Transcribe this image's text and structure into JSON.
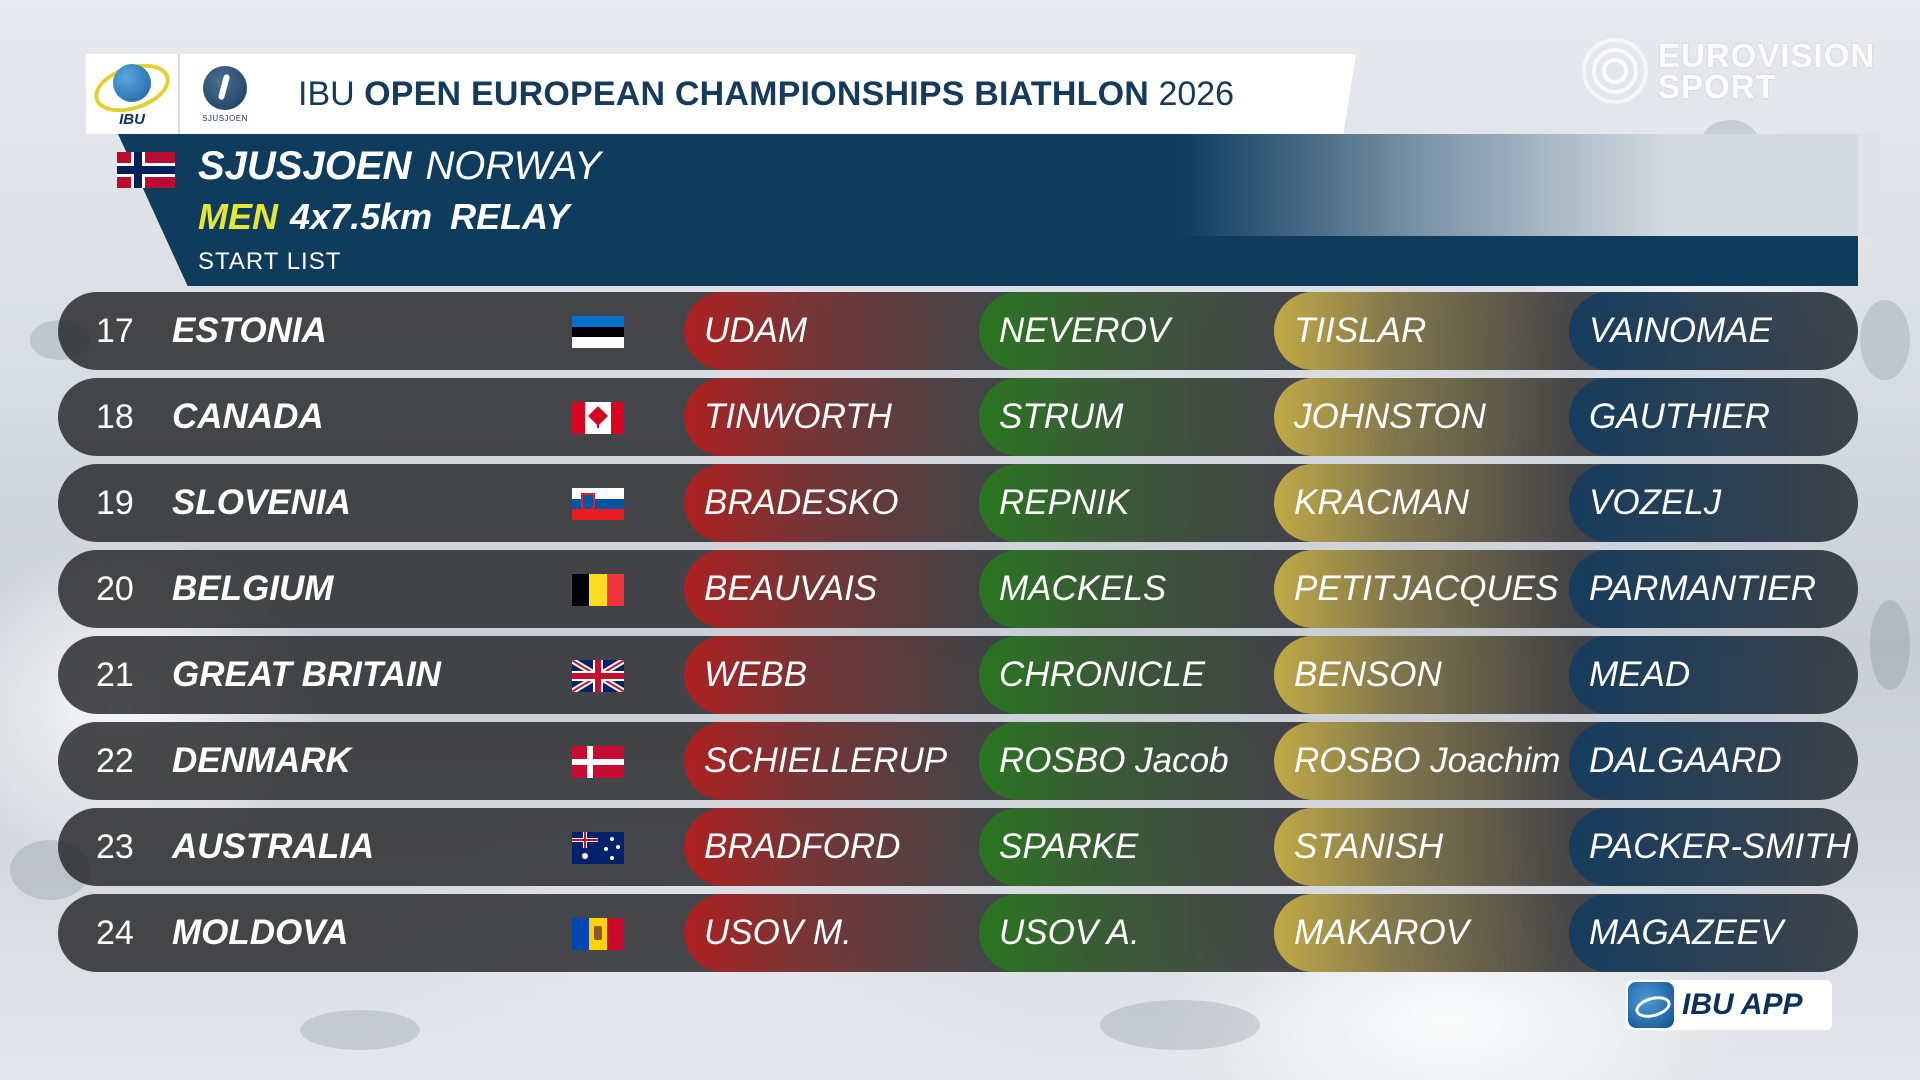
{
  "header": {
    "logo_text": "IBU",
    "venue_logo_text": "SJUSJOEN",
    "title_prefix": "IBU",
    "title_main": "OPEN EUROPEAN CHAMPIONSHIPS BIATHLON",
    "title_year": "2026"
  },
  "broadcaster": {
    "line1": "EUROVISION",
    "line2": "SPORT"
  },
  "event": {
    "city": "SJUSJOEN",
    "country": "NORWAY",
    "gender": "MEN",
    "distance": "4x7.5km",
    "format": "RELAY",
    "list_type": "START  LIST"
  },
  "leg_colors": [
    "#b41e1e",
    "#287a1e",
    "#c8af46",
    "#143c5f"
  ],
  "rows": [
    {
      "num": "17",
      "team": "ESTONIA",
      "flag": "estonia-flag",
      "legs": [
        "UDAM",
        "NEVEROV",
        "TIISLAR",
        "VAINOMAE"
      ]
    },
    {
      "num": "18",
      "team": "CANADA",
      "flag": "canada-flag",
      "legs": [
        "TINWORTH",
        "STRUM",
        "JOHNSTON",
        "GAUTHIER"
      ]
    },
    {
      "num": "19",
      "team": "SLOVENIA",
      "flag": "slovenia-flag",
      "legs": [
        "BRADESKO",
        "REPNIK",
        "KRACMAN",
        "VOZELJ"
      ]
    },
    {
      "num": "20",
      "team": "BELGIUM",
      "flag": "belgium-flag",
      "legs": [
        "BEAUVAIS",
        "MACKELS",
        "PETITJACQUES",
        "PARMANTIER"
      ]
    },
    {
      "num": "21",
      "team": "GREAT  BRITAIN",
      "flag": "great-britain-flag",
      "legs": [
        "WEBB",
        "CHRONICLE",
        "BENSON",
        "MEAD"
      ]
    },
    {
      "num": "22",
      "team": "DENMARK",
      "flag": "denmark-flag",
      "legs": [
        "SCHIELLERUP",
        "ROSBO  Jacob",
        "ROSBO  Joachim",
        "DALGAARD"
      ]
    },
    {
      "num": "23",
      "team": "AUSTRALIA",
      "flag": "australia-flag",
      "legs": [
        "BRADFORD",
        "SPARKE",
        "STANISH",
        "PACKER-SMITH"
      ]
    },
    {
      "num": "24",
      "team": "MOLDOVA",
      "flag": "moldova-flag",
      "legs": [
        "USOV  M.",
        "USOV  A.",
        "MAKAROV",
        "MAGAZEEV"
      ]
    }
  ],
  "app_badge": {
    "label": "IBU APP"
  }
}
